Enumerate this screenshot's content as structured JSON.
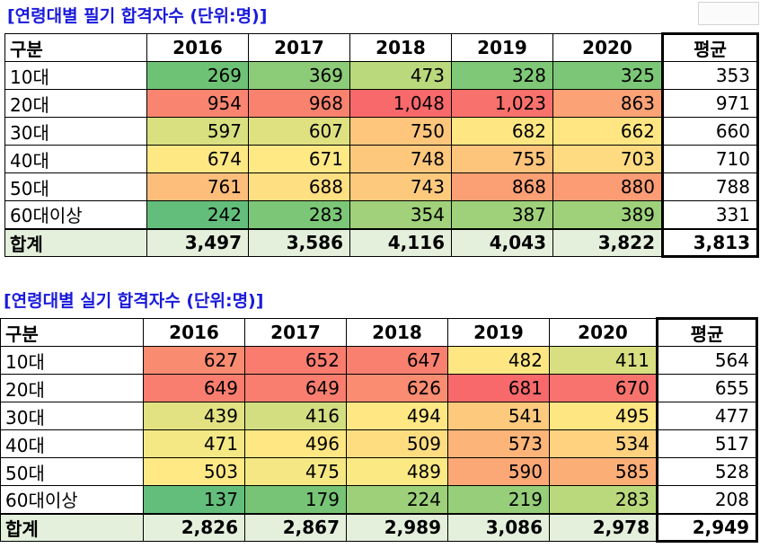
{
  "tables": [
    {
      "title": "[연령대별 필기 합격자수 (단위:명)]",
      "headers": [
        "구분",
        "2016",
        "2017",
        "2018",
        "2019",
        "2020",
        "평균"
      ],
      "rows": [
        {
          "label": "10대",
          "values": [
            "269",
            "369",
            "473",
            "328",
            "325"
          ],
          "avg": "353"
        },
        {
          "label": "20대",
          "values": [
            "954",
            "968",
            "1,048",
            "1,023",
            "863"
          ],
          "avg": "971"
        },
        {
          "label": "30대",
          "values": [
            "597",
            "607",
            "750",
            "682",
            "662"
          ],
          "avg": "660"
        },
        {
          "label": "40대",
          "values": [
            "674",
            "671",
            "748",
            "755",
            "703"
          ],
          "avg": "710"
        },
        {
          "label": "50대",
          "values": [
            "761",
            "688",
            "743",
            "868",
            "880"
          ],
          "avg": "788"
        },
        {
          "label": "60대이상",
          "values": [
            "242",
            "283",
            "354",
            "387",
            "389"
          ],
          "avg": "331"
        }
      ],
      "total": {
        "label": "합계",
        "values": [
          "3,497",
          "3,586",
          "4,116",
          "4,043",
          "3,822"
        ],
        "avg": "3,813"
      },
      "cell_colors": [
        [
          "#6ec276",
          "#8ccc78",
          "#bad97c",
          "#7ec877",
          "#7bc777"
        ],
        [
          "#f98570",
          "#f8826e",
          "#f8696b",
          "#f8716c",
          "#fba276"
        ],
        [
          "#d8e07f",
          "#dfe181",
          "#fdc67c",
          "#fee783",
          "#ffe683"
        ],
        [
          "#fee883",
          "#ffe985",
          "#fdc77c",
          "#fdc47b",
          "#fedb80"
        ],
        [
          "#fdbe7b",
          "#fedf81",
          "#fdca7d",
          "#fba075",
          "#fb9c74"
        ],
        [
          "#63be7b",
          "#7bc777",
          "#a1d17a",
          "#9fd17a",
          "#9fd17a"
        ]
      ]
    },
    {
      "title": "[연령대별 실기 합격자수 (단위:명)]",
      "headers": [
        "구분",
        "2016",
        "2017",
        "2018",
        "2019",
        "2020",
        "평균"
      ],
      "rows": [
        {
          "label": "10대",
          "values": [
            "627",
            "652",
            "647",
            "482",
            "411"
          ],
          "avg": "564"
        },
        {
          "label": "20대",
          "values": [
            "649",
            "649",
            "626",
            "681",
            "670"
          ],
          "avg": "655"
        },
        {
          "label": "30대",
          "values": [
            "439",
            "416",
            "494",
            "541",
            "495"
          ],
          "avg": "477"
        },
        {
          "label": "40대",
          "values": [
            "471",
            "496",
            "509",
            "573",
            "534"
          ],
          "avg": "517"
        },
        {
          "label": "50대",
          "values": [
            "503",
            "475",
            "489",
            "590",
            "585"
          ],
          "avg": "528"
        },
        {
          "label": "60대이상",
          "values": [
            "137",
            "179",
            "224",
            "219",
            "283"
          ],
          "avg": "208"
        }
      ],
      "total": {
        "label": "합계",
        "values": [
          "2,826",
          "2,867",
          "2,989",
          "3,086",
          "2,978"
        ],
        "avg": "2,949"
      },
      "cell_colors": [
        [
          "#f98b71",
          "#f97c6f",
          "#f97f6f",
          "#fee683",
          "#d7df80"
        ],
        [
          "#f97e6f",
          "#f97e6f",
          "#f98c71",
          "#f8696b",
          "#f8736d"
        ],
        [
          "#e2e282",
          "#d3de80",
          "#ffe884",
          "#fdc97d",
          "#fee683"
        ],
        [
          "#f4e884",
          "#ffe784",
          "#fedd81",
          "#fcb478",
          "#fed27f"
        ],
        [
          "#fee985",
          "#f5e884",
          "#fbe984",
          "#fba876",
          "#fcae77"
        ],
        [
          "#63be7b",
          "#77c476",
          "#9dd079",
          "#96ce79",
          "#bad97c"
        ]
      ]
    }
  ]
}
